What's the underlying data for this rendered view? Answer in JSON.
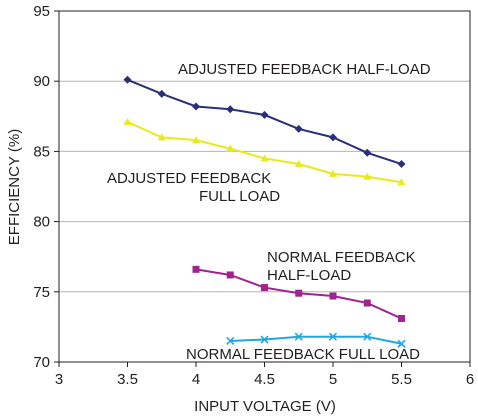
{
  "chart_data": {
    "type": "line",
    "title": "",
    "xlabel": "INPUT VOLTAGE (V)",
    "ylabel": "EFFICIENCY (%)",
    "xlim": [
      3,
      6
    ],
    "ylim": [
      70,
      95
    ],
    "xticks": [
      3,
      3.5,
      4,
      4.5,
      5,
      5.5,
      6
    ],
    "yticks": [
      70,
      75,
      80,
      85,
      90,
      95
    ],
    "grid": "horizontal",
    "series": [
      {
        "name": "ADJUSTED FEEDBACK HALF-LOAD",
        "color": "#2b2f7a",
        "marker": "diamond",
        "x": [
          3.5,
          3.75,
          4,
          4.25,
          4.5,
          4.75,
          5,
          5.25,
          5.5
        ],
        "y": [
          90.1,
          89.1,
          88.2,
          88.0,
          87.6,
          86.6,
          86.0,
          84.9,
          84.1
        ]
      },
      {
        "name": "ADJUSTED FEEDBACK FULL LOAD",
        "color": "#e8ea1e",
        "marker": "triangle",
        "x": [
          3.5,
          3.75,
          4,
          4.25,
          4.5,
          4.75,
          5,
          5.25,
          5.5
        ],
        "y": [
          87.1,
          86.0,
          85.8,
          85.2,
          84.5,
          84.1,
          83.4,
          83.2,
          82.8
        ]
      },
      {
        "name": "NORMAL FEEDBACK HALF-LOAD",
        "color": "#a0238f",
        "marker": "square",
        "x": [
          4,
          4.25,
          4.5,
          4.75,
          5,
          5.25,
          5.5
        ],
        "y": [
          76.6,
          76.2,
          75.3,
          74.9,
          74.7,
          74.2,
          73.1
        ]
      },
      {
        "name": "NORMAL FEEDBACK FULL LOAD",
        "color": "#1fa8e1",
        "marker": "x",
        "x": [
          4.25,
          4.5,
          4.75,
          5,
          5.25,
          5.5
        ],
        "y": [
          71.5,
          71.6,
          71.8,
          71.8,
          71.8,
          71.3
        ]
      }
    ],
    "annotations": [
      {
        "lines": [
          "ADJUSTED FEEDBACK HALF-LOAD"
        ]
      },
      {
        "lines": [
          "ADJUSTED FEEDBACK",
          "FULL LOAD"
        ]
      },
      {
        "lines": [
          "NORMAL FEEDBACK",
          "HALF-LOAD"
        ]
      },
      {
        "lines": [
          "NORMAL FEEDBACK FULL LOAD"
        ]
      }
    ]
  }
}
